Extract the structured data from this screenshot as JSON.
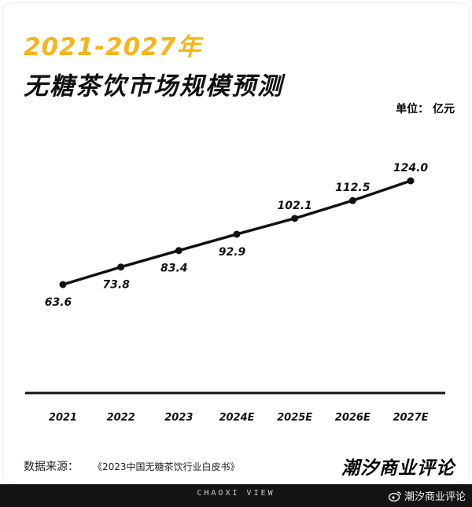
{
  "title_year": "2021-2027年",
  "title_main": "无糖茶饮市场规模预测",
  "unit_label": "单位：  亿元",
  "source_label": "数据来源：",
  "source_citation": "《2023中国无糖茶饮行业白皮书》",
  "brand": "潮汐商业评论",
  "bottom_mark": "CHAOXI VIEW",
  "watermark": "潮汐商业评论",
  "colors": {
    "accent": "#f5b51b",
    "ink": "#111111",
    "bar": "#141414"
  },
  "chart_data": {
    "type": "line",
    "title": "无糖茶饮市场规模预测",
    "categories": [
      "2021",
      "2022",
      "2023",
      "2024E",
      "2025E",
      "2026E",
      "2027E"
    ],
    "value_labels": [
      "63.6",
      "73.8",
      "83.4",
      "92.9",
      "102.1",
      "112.5",
      "124.0"
    ],
    "values": [
      63.6,
      73.8,
      83.4,
      92.9,
      102.1,
      112.5,
      124.0
    ],
    "label_positions": [
      "below",
      "below",
      "below",
      "below",
      "above",
      "above",
      "above"
    ],
    "ylim": [
      20,
      145
    ],
    "grid": false,
    "legend": "none"
  }
}
